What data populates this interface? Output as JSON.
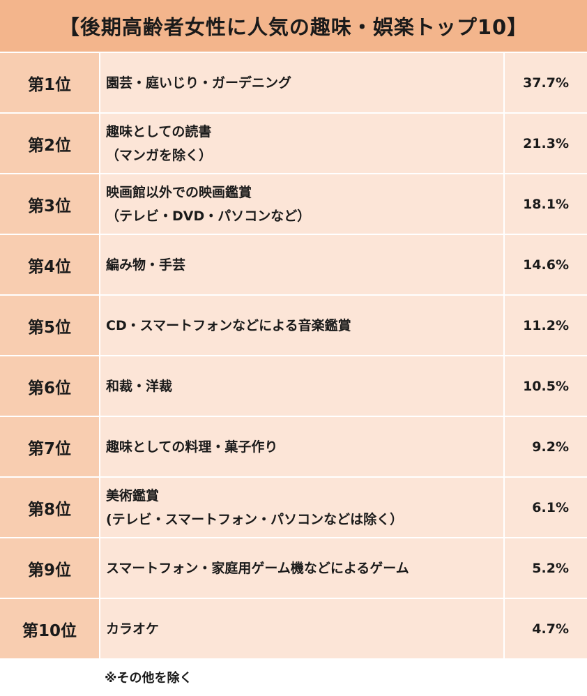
{
  "title": "【後期高齢者女性に人気の趣味・娯楽トップ10】",
  "rows": [
    {
      "rank": "第1位",
      "line1": "園芸・庭いじり・ガーデニング",
      "line2": "",
      "percent": "37.7%"
    },
    {
      "rank": "第2位",
      "line1": "趣味としての読書",
      "line2": "（マンガを除く）",
      "percent": "21.3%"
    },
    {
      "rank": "第3位",
      "line1": "映画館以外での映画鑑賞",
      "line2": "（テレビ・DVD・パソコンなど）",
      "percent": "18.1%"
    },
    {
      "rank": "第4位",
      "line1": "編み物・手芸",
      "line2": "",
      "percent": "14.6%"
    },
    {
      "rank": "第5位",
      "line1": "CD・スマートフォンなどによる音楽鑑賞",
      "line2": "",
      "percent": "11.2%"
    },
    {
      "rank": "第6位",
      "line1": "和裁・洋裁",
      "line2": "",
      "percent": "10.5%"
    },
    {
      "rank": "第7位",
      "line1": "趣味としての料理・菓子作り",
      "line2": "",
      "percent": "9.2%"
    },
    {
      "rank": "第8位",
      "line1": "美術鑑賞",
      "line2": "(テレビ・スマートフォン・パソコンなどは除く）",
      "percent": "6.1%"
    },
    {
      "rank": "第9位",
      "line1": "スマートフォン・家庭用ゲーム機などによるゲーム",
      "line2": "",
      "percent": "5.2%"
    },
    {
      "rank": "第10位",
      "line1": "カラオケ",
      "line2": "",
      "percent": "4.7%"
    }
  ],
  "note": "※その他を除く"
}
